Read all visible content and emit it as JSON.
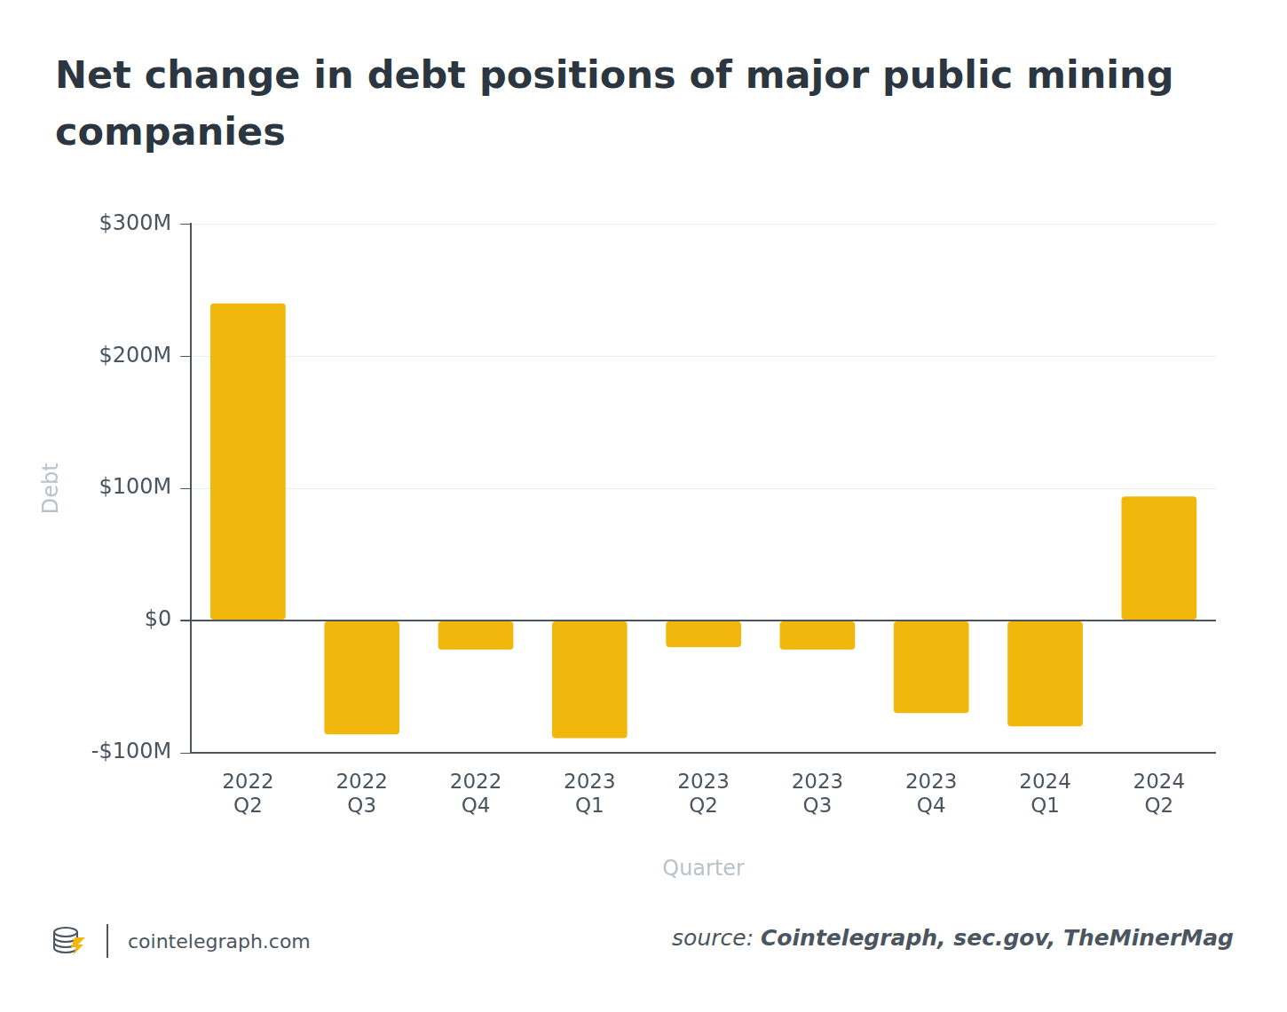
{
  "chart_data": {
    "type": "bar",
    "title": "Net change in debt positions of major public mining companies",
    "x_label": "Quarter",
    "y_label": "Debt",
    "categories": [
      "2022 Q2",
      "2022 Q3",
      "2022 Q4",
      "2023 Q1",
      "2023 Q2",
      "2023 Q3",
      "2023 Q4",
      "2024 Q1",
      "2024 Q2"
    ],
    "values": [
      240,
      -86,
      -22,
      -89,
      -20,
      -22,
      -70,
      -80,
      94
    ],
    "color": "#f2b70c",
    "ylim": [
      -100,
      300
    ],
    "yticks": [
      {
        "value": -100,
        "label": "-$100M"
      },
      {
        "value": 0,
        "label": "$0"
      },
      {
        "value": 100,
        "label": "$100M"
      },
      {
        "value": 200,
        "label": "$200M"
      },
      {
        "value": 300,
        "label": "$300M"
      }
    ],
    "grid": true,
    "footer": "cointelegraph.com",
    "source_label": "source:",
    "source": "Cointelegraph, sec.gov, TheMinerMag"
  }
}
